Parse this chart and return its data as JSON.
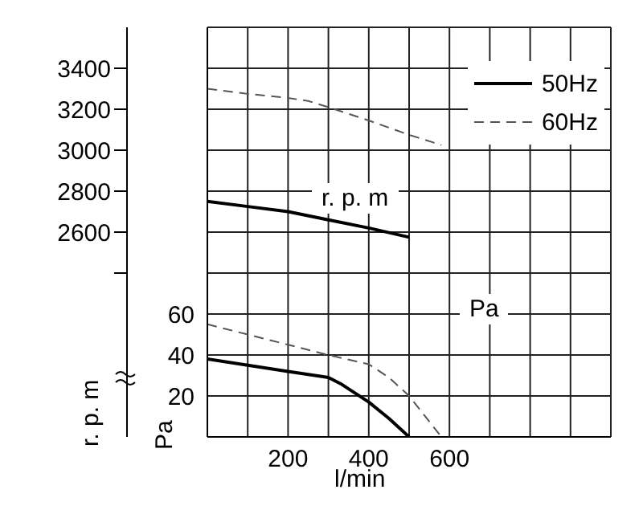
{
  "chart_data": {
    "type": "line",
    "xlabel": "l/min",
    "ylabel": "Pa",
    "y2label": "r. p. m",
    "annotations": [
      "r. p. m",
      "Pa"
    ],
    "xlim": [
      0,
      1000
    ],
    "xticks": [
      {
        "value": 0,
        "label": null
      },
      {
        "value": 100,
        "label": null
      },
      200,
      {
        "value": 300,
        "label": null
      },
      400,
      {
        "value": 500,
        "label": null
      },
      600,
      {
        "value": 700,
        "label": null
      },
      {
        "value": 800,
        "label": null
      },
      {
        "value": 900,
        "label": null
      },
      {
        "value": 1000,
        "label": null
      }
    ],
    "ylim": [
      0,
      200
    ],
    "yticks": [
      {
        "value": 0,
        "label": null
      },
      20,
      40,
      60,
      {
        "value": 80,
        "label": null
      },
      {
        "value": 100,
        "label": null
      },
      {
        "value": 120,
        "label": null
      },
      {
        "value": 140,
        "label": null
      },
      {
        "value": 160,
        "label": null
      },
      {
        "value": 180,
        "label": null
      },
      {
        "value": 200,
        "label": null
      }
    ],
    "y2lim": [
      1600,
      3600
    ],
    "y2ticks": [
      {
        "value": 2400,
        "label": null
      },
      2600,
      2800,
      3000,
      3200,
      3400
    ],
    "grid": true,
    "legend": "top right",
    "marker": "none",
    "series": [
      {
        "name": "50Hz",
        "color": "#000000",
        "line_style": "solid",
        "axis": "y2",
        "x": [
          0,
          100,
          200,
          300,
          400,
          500
        ],
        "values": [
          2750,
          2725,
          2700,
          2660,
          2620,
          2575
        ]
      },
      {
        "name": "60Hz",
        "color": "#555555",
        "line_style": "dashed",
        "axis": "y2",
        "x": [
          0,
          100,
          200,
          250,
          300,
          400,
          500,
          580
        ],
        "values": [
          3300,
          3275,
          3255,
          3240,
          3210,
          3145,
          3075,
          3025
        ]
      },
      {
        "color": "#000000",
        "line_style": "solid",
        "x": [
          0,
          100,
          200,
          300,
          330,
          400,
          450,
          500
        ],
        "values": [
          38,
          35,
          32,
          29,
          26,
          17,
          9,
          0
        ]
      },
      {
        "color": "#555555",
        "line_style": "dashed",
        "x": [
          0,
          200,
          300,
          400,
          450,
          500,
          580
        ],
        "values": [
          55,
          45,
          40,
          35.5,
          29,
          20,
          0
        ]
      }
    ]
  }
}
